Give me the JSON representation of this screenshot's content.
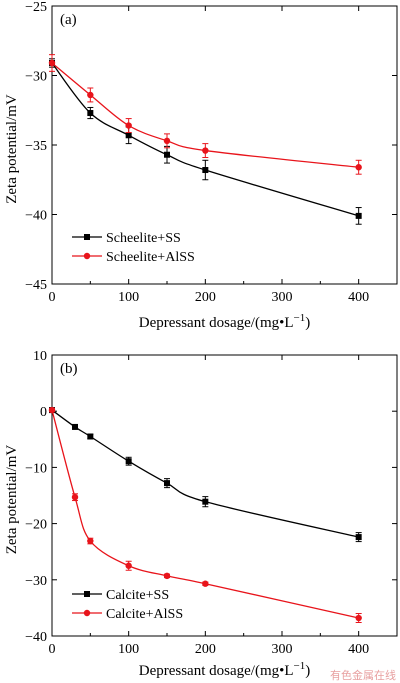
{
  "chart_data": [
    {
      "type": "line",
      "panel_label": "(a)",
      "xlabel": "Depressant dosage/(mg•L",
      "xlabel_sup": "−1",
      "xlabel_end": ")",
      "ylabel": "Zeta potential/mV",
      "xlim": [
        0,
        450
      ],
      "ylim": [
        -45,
        -25
      ],
      "xticks": [
        0,
        100,
        200,
        300,
        400
      ],
      "yticks": [
        -25,
        -30,
        -35,
        -40,
        -45
      ],
      "grid": false,
      "legend_position": "bottom-left",
      "series": [
        {
          "name": "Scheelite+SS",
          "color": "#000000",
          "marker": "square",
          "x": [
            0,
            50,
            100,
            150,
            200,
            400
          ],
          "y": [
            -29.1,
            -32.7,
            -34.3,
            -35.7,
            -36.8,
            -40.1
          ],
          "err": [
            0.3,
            0.4,
            0.6,
            0.6,
            0.7,
            0.6
          ]
        },
        {
          "name": "Scheelite+AlSS",
          "color": "#e8141b",
          "marker": "circle",
          "x": [
            0,
            50,
            100,
            150,
            200,
            400
          ],
          "y": [
            -29.1,
            -31.4,
            -33.6,
            -34.7,
            -35.4,
            -36.6
          ],
          "err": [
            0.6,
            0.5,
            0.5,
            0.5,
            0.5,
            0.5
          ]
        }
      ]
    },
    {
      "type": "line",
      "panel_label": "(b)",
      "xlabel": "Depressant dosage/(mg•L",
      "xlabel_sup": "−1",
      "xlabel_end": ")",
      "ylabel": "Zeta potential/mV",
      "xlim": [
        0,
        450
      ],
      "ylim": [
        -40,
        10
      ],
      "xticks": [
        0,
        100,
        200,
        300,
        400
      ],
      "yticks": [
        10,
        0,
        -10,
        -20,
        -30,
        -40
      ],
      "grid": false,
      "legend_position": "bottom-left",
      "series": [
        {
          "name": "Calcite+SS",
          "color": "#000000",
          "marker": "square",
          "x": [
            0,
            30,
            50,
            100,
            150,
            200,
            400
          ],
          "y": [
            0.2,
            -2.8,
            -4.5,
            -8.9,
            -12.8,
            -16.1,
            -22.4
          ],
          "err": [
            0.3,
            0.3,
            0.4,
            0.7,
            0.8,
            0.9,
            0.8
          ]
        },
        {
          "name": "Calcite+AlSS",
          "color": "#e8141b",
          "marker": "circle",
          "x": [
            0,
            30,
            50,
            100,
            150,
            200,
            400
          ],
          "y": [
            0.2,
            -15.3,
            -23.1,
            -27.5,
            -29.3,
            -30.7,
            -36.8
          ],
          "err": [
            0.3,
            0.6,
            0.5,
            0.8,
            0.3,
            0.3,
            0.8
          ]
        }
      ]
    }
  ],
  "watermark": "有色金属在线"
}
